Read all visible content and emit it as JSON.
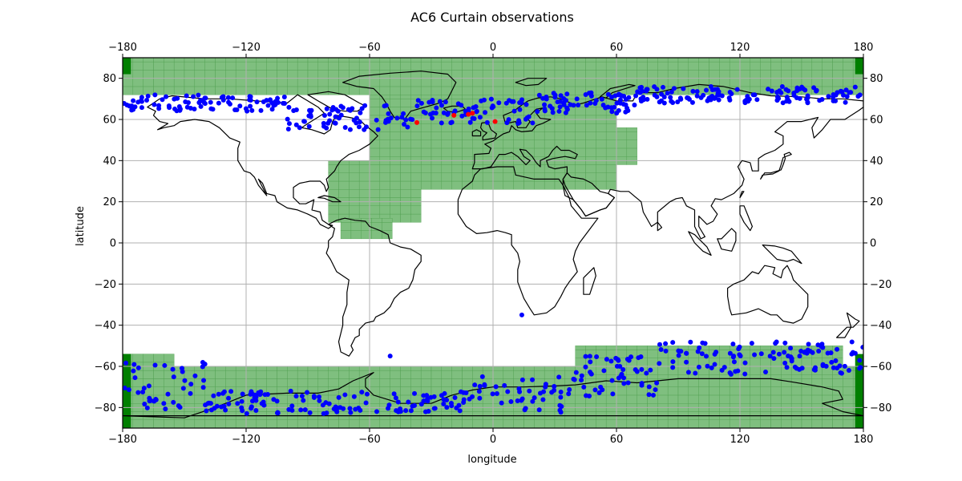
{
  "chart_data": {
    "type": "map",
    "title": "AC6 Curtain observations",
    "xlabel": "longitude",
    "ylabel": "latitude",
    "xlim": [
      -180,
      180
    ],
    "ylim": [
      -90,
      90
    ],
    "xticks": [
      -180,
      -120,
      -60,
      0,
      60,
      120,
      180
    ],
    "yticks": [
      -80,
      -60,
      -40,
      -20,
      0,
      20,
      40,
      60,
      80
    ],
    "grid": true,
    "colors": {
      "curtain_points": "#0000ff",
      "highlight_points": "#ff0000",
      "coverage_fill": "#7fbf7f",
      "coverage_dark": "#007f00",
      "grid": "#b0b0b0",
      "coastline": "#000000"
    },
    "coverage_regions": [
      {
        "lon": [
          -180,
          180
        ],
        "lat": [
          72,
          90
        ]
      },
      {
        "lon": [
          -60,
          60
        ],
        "lat": [
          26,
          72
        ]
      },
      {
        "lon": [
          -80,
          -36
        ],
        "lat": [
          10,
          40
        ]
      },
      {
        "lon": [
          -74,
          -50
        ],
        "lat": [
          2,
          12
        ]
      },
      {
        "lon": [
          60,
          68
        ],
        "lat": [
          38,
          56
        ]
      },
      {
        "lon": [
          -180,
          180
        ],
        "lat": [
          -90,
          -60
        ]
      },
      {
        "lon": [
          40,
          170
        ],
        "lat": [
          -64,
          -50
        ]
      },
      {
        "lon": [
          -180,
          -155
        ],
        "lat": [
          -66,
          -54
        ]
      }
    ],
    "dark_regions": [
      {
        "lon": [
          -180,
          -176
        ],
        "lat": [
          82,
          90
        ]
      },
      {
        "lon": [
          176,
          180
        ],
        "lat": [
          82,
          90
        ]
      },
      {
        "lon": [
          -180,
          -176
        ],
        "lat": [
          -90,
          -54
        ]
      },
      {
        "lon": [
          176,
          180
        ],
        "lat": [
          -90,
          -54
        ]
      }
    ],
    "north_band": {
      "lon": [
        -180,
        180
      ],
      "lat": [
        57,
        76
      ]
    },
    "south_band": {
      "lon": [
        -180,
        180
      ],
      "lat": [
        -84,
        -46
      ]
    },
    "red_points": [
      [
        -37,
        58.5
      ],
      [
        -19,
        62
      ],
      [
        -12,
        62.5
      ],
      [
        -10,
        63
      ],
      [
        1,
        59
      ]
    ],
    "scattered_points": [
      [
        -50,
        -55
      ],
      [
        14,
        -35
      ],
      [
        -160,
        -78
      ]
    ]
  }
}
